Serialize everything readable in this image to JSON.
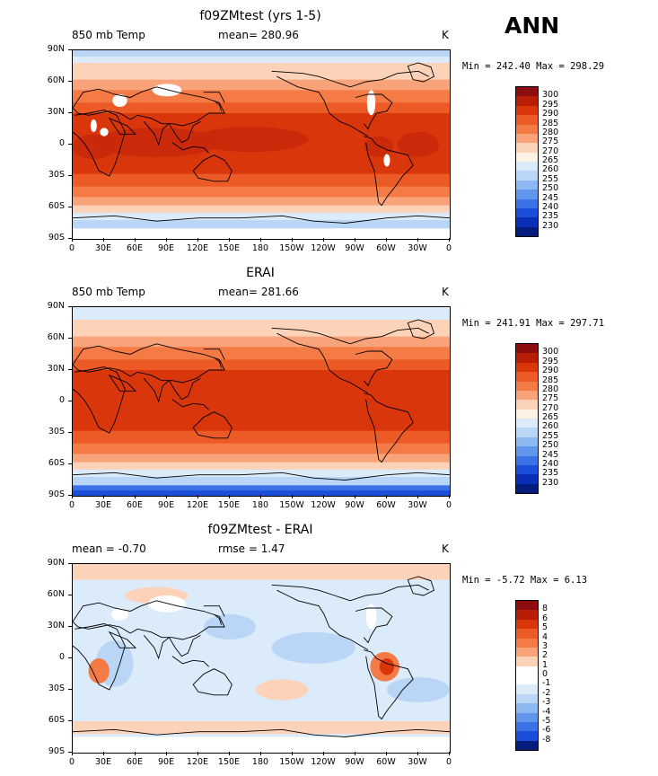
{
  "season": "ANN",
  "panels": [
    {
      "title": "f09ZMtest (yrs 1-5)",
      "left": "850 mb Temp",
      "center": "mean= 280.96",
      "right": "K",
      "minmax": "Min = 242.40 Max = 298.29",
      "colorbar": {
        "labels": [
          "300",
          "295",
          "290",
          "285",
          "280",
          "275",
          "270",
          "265",
          "260",
          "255",
          "250",
          "245",
          "240",
          "235",
          "230"
        ],
        "colors": [
          "#8b0d0d",
          "#b81d05",
          "#d9360c",
          "#ec5b26",
          "#f47a46",
          "#f8a37a",
          "#fcd2b9",
          "#fef2e4",
          "#dcebf9",
          "#b9d6f6",
          "#8eb8f2",
          "#6196ec",
          "#3a71e6",
          "#1a4ed8",
          "#0a2fb6",
          "#041c7c"
        ]
      },
      "icon": "field-map"
    },
    {
      "title": "ERAI",
      "left": "850 mb Temp",
      "center": "mean= 281.66",
      "right": "K",
      "minmax": "Min = 241.91 Max = 297.71",
      "colorbar": {
        "labels": [
          "300",
          "295",
          "290",
          "285",
          "280",
          "275",
          "270",
          "265",
          "260",
          "255",
          "250",
          "245",
          "240",
          "235",
          "230"
        ],
        "colors": [
          "#8b0d0d",
          "#b81d05",
          "#d9360c",
          "#ec5b26",
          "#f47a46",
          "#f8a37a",
          "#fcd2b9",
          "#fef2e4",
          "#dcebf9",
          "#b9d6f6",
          "#8eb8f2",
          "#6196ec",
          "#3a71e6",
          "#1a4ed8",
          "#0a2fb6",
          "#041c7c"
        ]
      },
      "icon": "field-map"
    },
    {
      "title": "f09ZMtest - ERAI",
      "left": "mean =   -0.70",
      "center": "rmse =    1.47",
      "right": "K",
      "minmax": "Min =   -5.72 Max =    6.13",
      "colorbar": {
        "labels": [
          "8",
          "6",
          "5",
          "4",
          "3",
          "2",
          "1",
          "0",
          "-1",
          "-2",
          "-3",
          "-4",
          "-5",
          "-6",
          "-8"
        ],
        "colors": [
          "#8b0d0d",
          "#b81d05",
          "#d9360c",
          "#ec5b26",
          "#f47a46",
          "#f8a37a",
          "#fcd2b9",
          "#ffffff",
          "#ffffff",
          "#dcebf9",
          "#b9d6f6",
          "#8eb8f2",
          "#6196ec",
          "#3a71e6",
          "#1a4ed8",
          "#041c7c"
        ]
      },
      "icon": "difference-map"
    }
  ],
  "axes": {
    "lat_labels": [
      "90N",
      "60N",
      "30N",
      "0",
      "30S",
      "60S",
      "90S"
    ],
    "lon_labels": [
      "0",
      "30E",
      "60E",
      "90E",
      "120E",
      "150E",
      "180",
      "150W",
      "120W",
      "90W",
      "60W",
      "30W",
      "0"
    ]
  }
}
